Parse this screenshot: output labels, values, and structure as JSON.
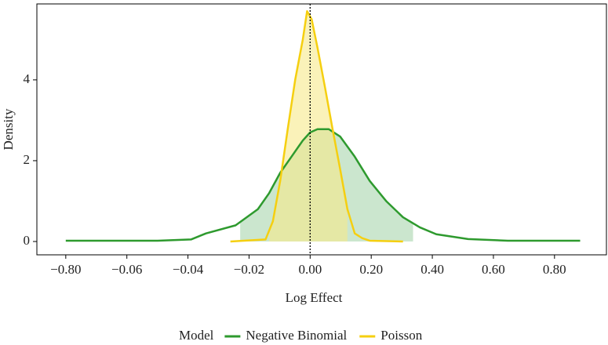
{
  "chart_data": {
    "type": "density",
    "x_label": "Log Effect",
    "y_label": "Density",
    "legend_title": "Model",
    "legend_position": "bottom",
    "xlim": [
      -1.15,
      0.97
    ],
    "xticks": [
      {
        "value": -0.8,
        "label": "−0.80"
      },
      {
        "value": -0.06,
        "label": "−0.06"
      },
      {
        "value": -0.04,
        "label": "−0.04"
      },
      {
        "value": -0.02,
        "label": "−0.02"
      },
      {
        "value": 0,
        "label": "0.00"
      },
      {
        "value": 0.2,
        "label": "0.20"
      },
      {
        "value": 0.4,
        "label": "0.40"
      },
      {
        "value": 0.6,
        "label": "0.60"
      },
      {
        "value": 0.8,
        "label": "0.80"
      }
    ],
    "ylim": [
      -0.33,
      5.88
    ],
    "yticks": [
      0,
      2,
      4
    ],
    "vline": 0,
    "series": [
      {
        "name": "Negative Binomial",
        "color": "#2e9a2e",
        "fill": "#a8d5ad",
        "x": [
          -0.8,
          -0.0499,
          -0.039,
          -0.0341,
          -0.0244,
          -0.0171,
          -0.0134,
          -0.0098,
          -0.0061,
          -0.0024,
          0,
          0.024,
          0.061,
          0.098,
          0.146,
          0.195,
          0.249,
          0.304,
          0.359,
          0.413,
          0.517,
          0.647,
          0.884
        ],
        "values": [
          0.02,
          0.02,
          0.05,
          0.2,
          0.4,
          0.8,
          1.2,
          1.7,
          2.1,
          2.5,
          2.7,
          2.78,
          2.78,
          2.6,
          2.1,
          1.5,
          1.0,
          0.6,
          0.35,
          0.18,
          0.06,
          0.02,
          0.02
        ],
        "shaded_interval": [
          -0.0229,
          0.337
        ]
      },
      {
        "name": "Poisson",
        "color": "#f5cf10",
        "fill": "#f6e98a",
        "x": [
          -0.0261,
          -0.0146,
          -0.0122,
          -0.0098,
          -0.0073,
          -0.0049,
          -0.0024,
          -0.001,
          0.005,
          0.024,
          0.049,
          0.073,
          0.098,
          0.122,
          0.146,
          0.171,
          0.195,
          0.304
        ],
        "values": [
          0,
          0.05,
          0.5,
          1.5,
          2.8,
          4.0,
          5.0,
          5.7,
          5.5,
          4.8,
          3.8,
          2.8,
          1.8,
          0.8,
          0.2,
          0.08,
          0.02,
          0
        ],
        "shaded_interval": [
          -0.0134,
          0.122
        ]
      }
    ]
  }
}
